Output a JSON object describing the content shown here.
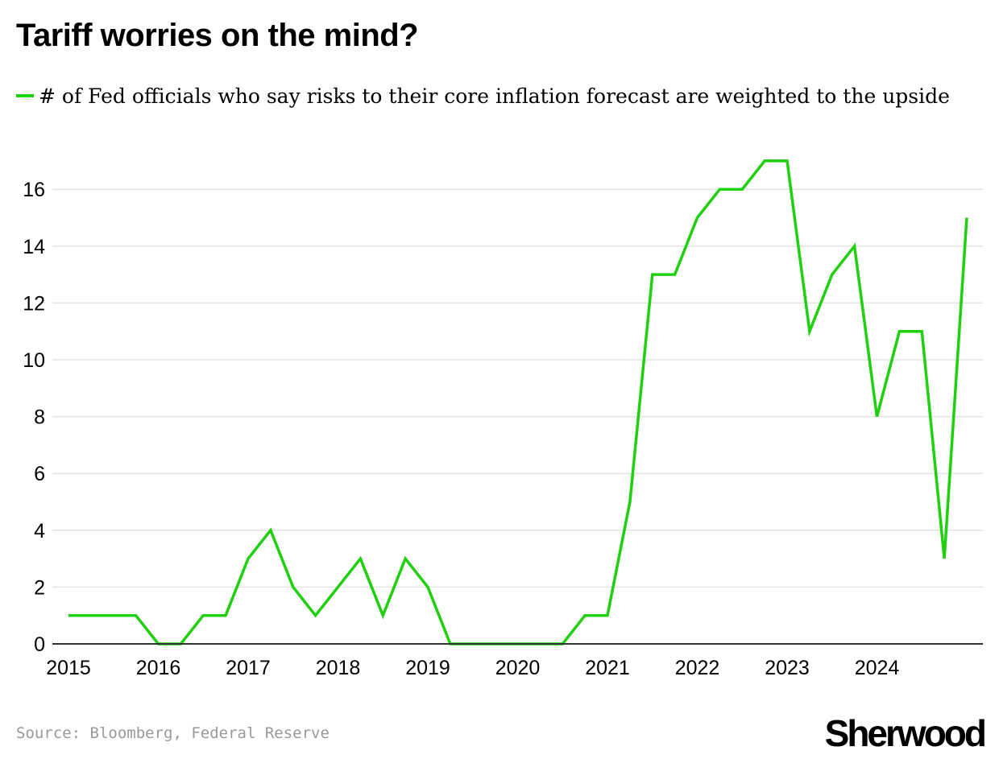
{
  "chart_data": {
    "type": "line",
    "title": "Tariff worries on the mind?",
    "xlabel": "",
    "ylabel": "",
    "ylim": [
      0,
      17.5
    ],
    "y_ticks": [
      0,
      2,
      4,
      6,
      8,
      10,
      12,
      14,
      16
    ],
    "x_ticks": [
      "2015",
      "2016",
      "2017",
      "2018",
      "2019",
      "2020",
      "2021",
      "2022",
      "2023",
      "2024"
    ],
    "grid": true,
    "legend_position": "top-left",
    "series": [
      {
        "name": "# of Fed officials who say risks to their core inflation forecast are weighted to the upside",
        "color": "#1ed00e",
        "x": [
          "2015 Q1",
          "2015 Q2",
          "2015 Q3",
          "2015 Q4",
          "2016 Q1",
          "2016 Q2",
          "2016 Q3",
          "2016 Q4",
          "2017 Q1",
          "2017 Q2",
          "2017 Q3",
          "2017 Q4",
          "2018 Q1",
          "2018 Q2",
          "2018 Q3",
          "2018 Q4",
          "2019 Q1",
          "2019 Q2",
          "2019 Q3",
          "2019 Q4",
          "2020 Q1",
          "2020 Q2",
          "2020 Q3",
          "2020 Q4",
          "2021 Q1",
          "2021 Q2",
          "2021 Q3",
          "2021 Q4",
          "2022 Q1",
          "2022 Q2",
          "2022 Q3",
          "2022 Q4",
          "2023 Q1",
          "2023 Q2",
          "2023 Q3",
          "2023 Q4",
          "2024 Q1",
          "2024 Q2",
          "2024 Q3",
          "2024 Q4",
          "2025 Q1"
        ],
        "values": [
          1,
          1,
          1,
          1,
          0,
          0,
          1,
          1,
          3,
          4,
          2,
          1,
          2,
          3,
          1,
          3,
          2,
          0,
          0,
          0,
          0,
          0,
          0,
          1,
          1,
          5,
          13,
          13,
          15,
          16,
          16,
          17,
          17,
          11,
          13,
          14,
          8,
          11,
          11,
          3,
          15
        ]
      }
    ]
  },
  "source": "Source: Bloomberg, Federal Reserve",
  "logo": "Sherwood"
}
